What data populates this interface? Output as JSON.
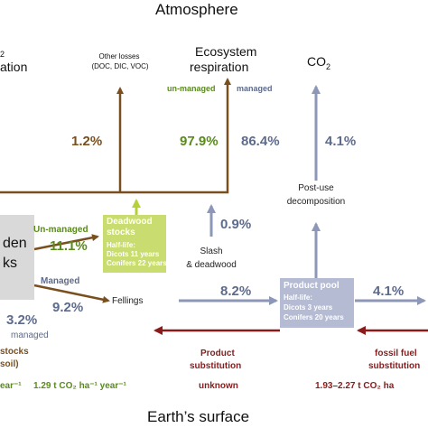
{
  "titles": {
    "top": "Atmosphere",
    "bottom": "Earth’s surface"
  },
  "top_labels": {
    "left_fragment_1": "2",
    "left_fragment_2": "ation",
    "other_losses": "Other losses",
    "other_losses_sub": "(DOC, DIC, VOC)",
    "ecosystem": "Ecosystem",
    "respiration": "respiration",
    "co2": "CO",
    "co2_sub": "2",
    "unmanaged": "un-managed",
    "managed": "managed"
  },
  "percentages": {
    "p1_2": "1.2%",
    "p97_9": "97.9%",
    "p86_4": "86.4%",
    "p4_1_top": "4.1%",
    "p0_9": "0.9%",
    "p11_1": "11.1%",
    "p9_2": "9.2%",
    "p8_2": "8.2%",
    "p4_1_right": "4.1%",
    "p3_2": "3.2%"
  },
  "labels": {
    "post_use_1": "Post-use",
    "post_use_2": "decomposition",
    "slash_1": "Slash",
    "slash_2": "& deadwood",
    "unmanaged_arrow": "Un-managed",
    "managed_arrow": "Managed",
    "fellings": "Fellings",
    "managed_bottom": "managed",
    "stocks": "stocks",
    "soil": "soil)",
    "product_substitution_1": "Product",
    "product_substitution_2": "substitution",
    "unknown": "unknown",
    "fossil_1": "fossil fuel",
    "fossil_2": "substitution",
    "left_rate": "ear⁻¹",
    "mid_rate": "1.29 t CO₂ ha⁻¹ year⁻¹",
    "right_rate": "1.93–2.27 t CO₂ ha"
  },
  "deadwood_box": {
    "title_1": "Deadwood",
    "title_2": "stocks",
    "halflife": "Half-life:",
    "line1": "Dicots 11 years",
    "line2": "Conifers 22 years",
    "color": "#c9dc6f"
  },
  "product_box": {
    "title": "Product pool",
    "halflife": "Half-life:",
    "line1": "Dicots 3 years",
    "line2": "Conifers 20 years",
    "color": "#b4bbd3"
  },
  "left_box": {
    "line1": "den",
    "line2": "ks",
    "color": "#d9d9d9"
  },
  "colors": {
    "brown": "#7a4f1e",
    "green": "#5a8a1e",
    "blue": "#5d6b8c",
    "darkred": "#8b1a1a",
    "lightgreen_arrow": "#b5d13a",
    "blue_arrow": "#8d97b8"
  }
}
